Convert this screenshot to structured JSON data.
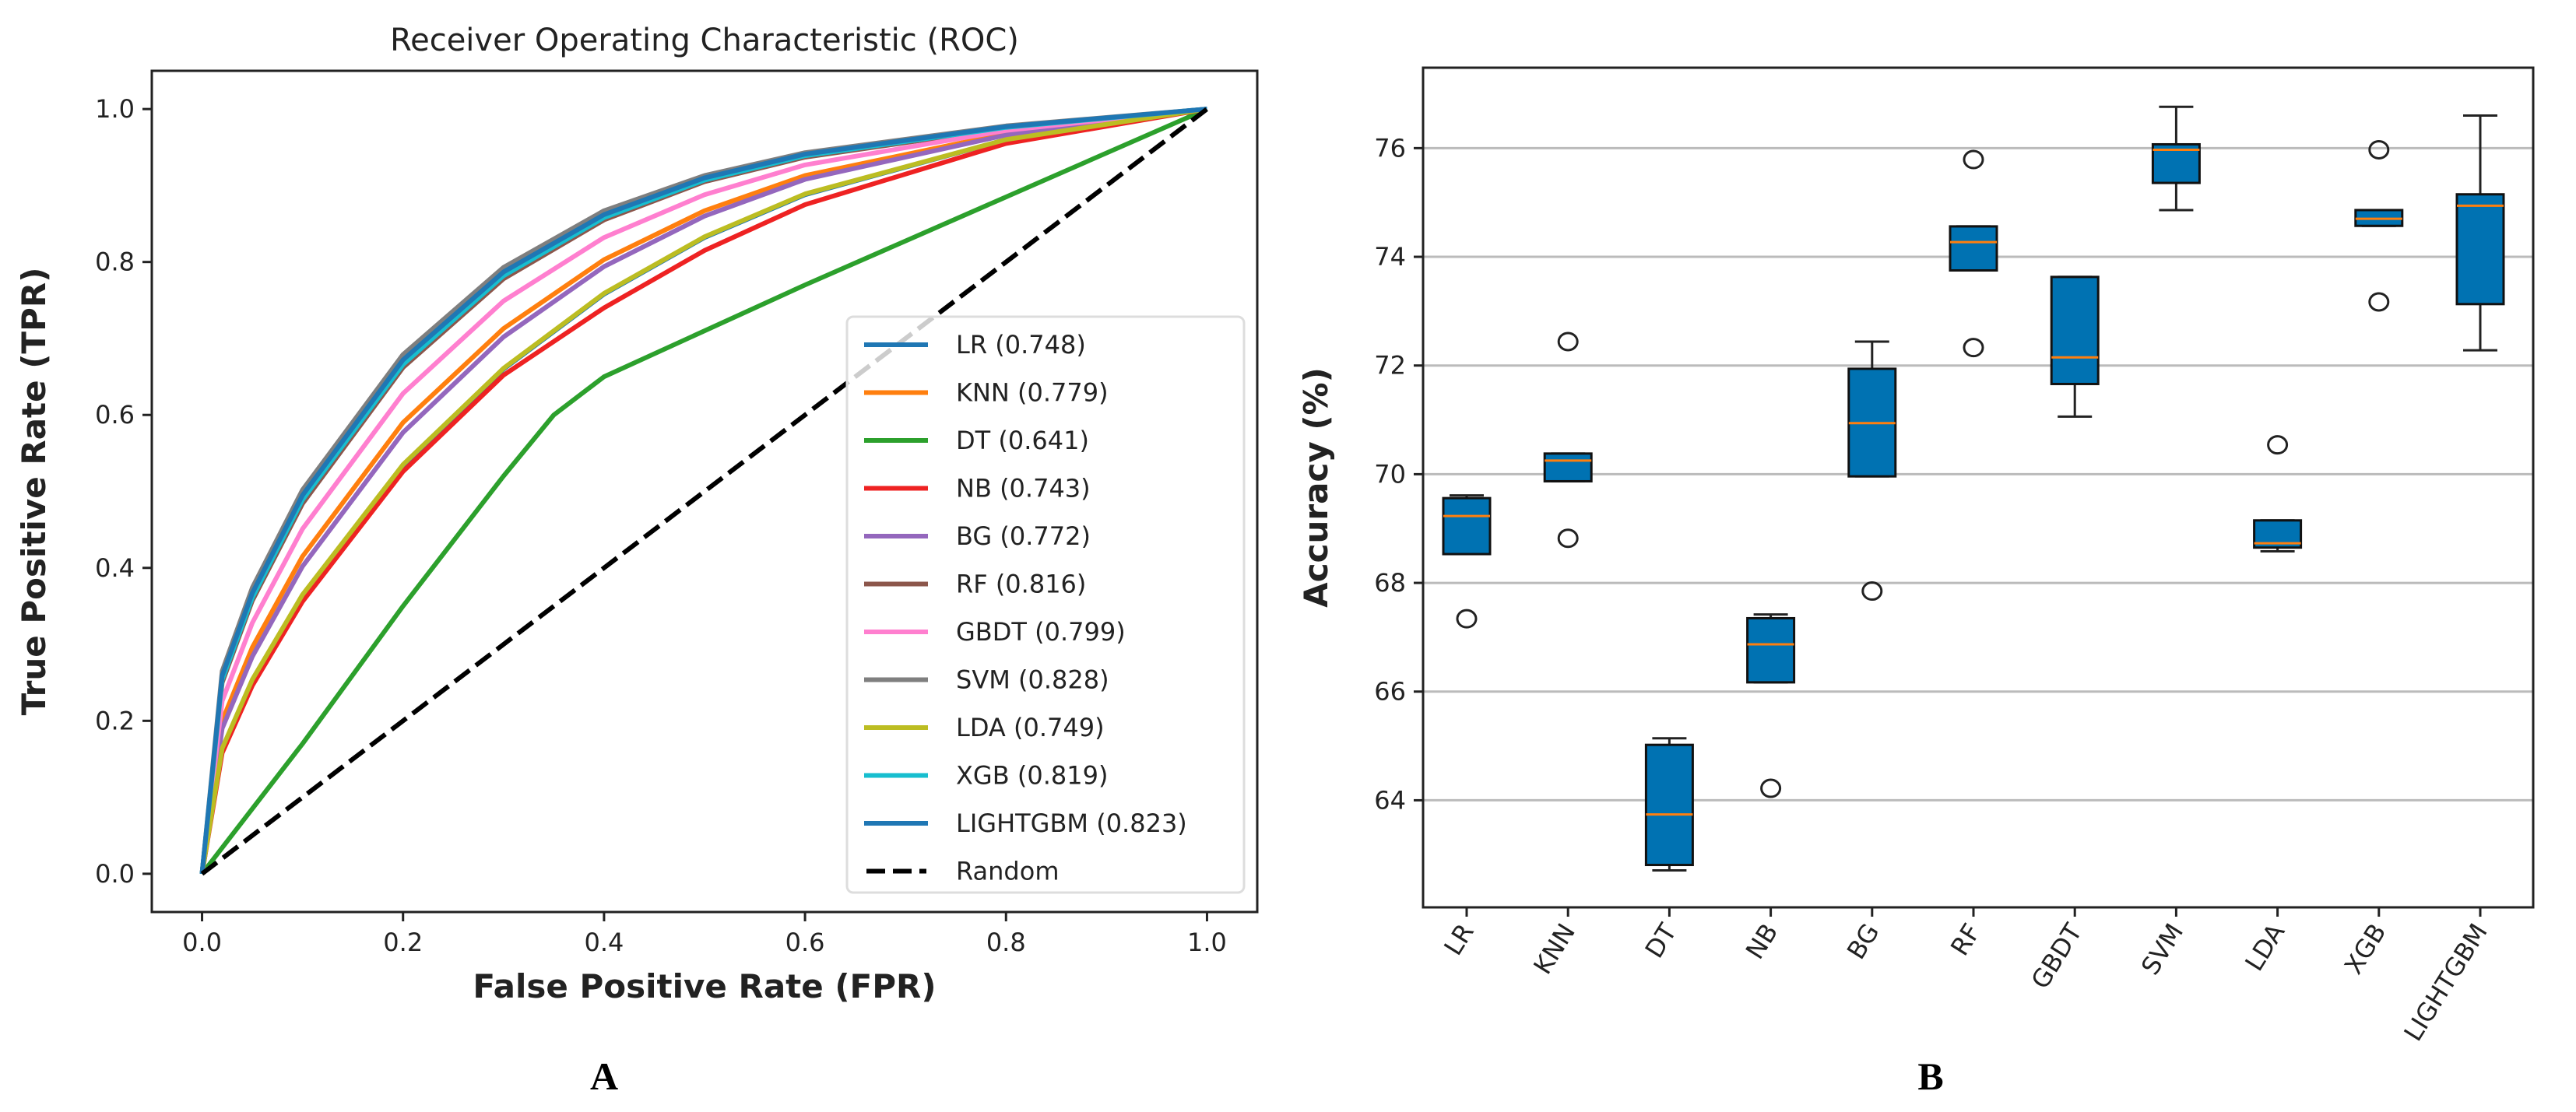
{
  "panel_labels": {
    "a": "A",
    "b": "B"
  },
  "chart_data": [
    {
      "type": "line",
      "title": "Receiver Operating Characteristic (ROC)",
      "xlabel": "False Positive Rate (FPR)",
      "ylabel": "True Positive Rate (TPR)",
      "xlim": [
        -0.05,
        1.05
      ],
      "ylim": [
        -0.05,
        1.05
      ],
      "xticks": [
        "0.0",
        "0.2",
        "0.4",
        "0.6",
        "0.8",
        "1.0"
      ],
      "yticks": [
        "0.0",
        "0.2",
        "0.4",
        "0.6",
        "0.8",
        "1.0"
      ],
      "grid": false,
      "legend_position": "lower-right",
      "fpr": [
        0,
        0.02,
        0.05,
        0.1,
        0.2,
        0.3,
        0.4,
        0.5,
        0.6,
        0.8,
        1
      ],
      "series": [
        {
          "name": "LR (0.748)",
          "auc": 0.748,
          "color": "#1f77b4",
          "tpr": [
            0,
            0.163,
            0.253,
            0.364,
            0.534,
            0.66,
            0.758,
            0.832,
            0.888,
            0.96,
            1
          ]
        },
        {
          "name": "KNN (0.779)",
          "auc": 0.779,
          "color": "#ff7f0e",
          "tpr": [
            0,
            0.2,
            0.296,
            0.415,
            0.59,
            0.713,
            0.803,
            0.867,
            0.913,
            0.968,
            1
          ]
        },
        {
          "name": "DT (0.641)",
          "auc": 0.641,
          "color": "#2ca02c",
          "fpr": [
            0,
            0.1,
            0.2,
            0.3,
            0.35,
            0.4,
            0.6,
            0.8,
            1
          ],
          "tpr": [
            0,
            0.17,
            0.35,
            0.52,
            0.6,
            0.65,
            0.77,
            0.885,
            1
          ]
        },
        {
          "name": "NB (0.743)",
          "auc": 0.743,
          "color": "#ee2222",
          "tpr": [
            0,
            0.158,
            0.246,
            0.356,
            0.526,
            0.652,
            0.74,
            0.815,
            0.875,
            0.955,
            1
          ]
        },
        {
          "name": "BG (0.772)",
          "auc": 0.772,
          "color": "#9467bd",
          "tpr": [
            0,
            0.19,
            0.284,
            0.402,
            0.577,
            0.702,
            0.794,
            0.86,
            0.908,
            0.966,
            1
          ]
        },
        {
          "name": "RF (0.816)",
          "auc": 0.816,
          "color": "#8c564b",
          "tpr": [
            0,
            0.25,
            0.357,
            0.484,
            0.662,
            0.778,
            0.855,
            0.905,
            0.937,
            0.975,
            1
          ]
        },
        {
          "name": "GBDT (0.799)",
          "auc": 0.799,
          "color": "#ff7fcf",
          "tpr": [
            0,
            0.226,
            0.328,
            0.451,
            0.628,
            0.749,
            0.832,
            0.888,
            0.927,
            0.972,
            1
          ]
        },
        {
          "name": "SVM (0.828)",
          "auc": 0.828,
          "color": "#7f7f7f",
          "tpr": [
            0,
            0.265,
            0.374,
            0.502,
            0.679,
            0.793,
            0.867,
            0.913,
            0.943,
            0.978,
            1
          ]
        },
        {
          "name": "LDA (0.749)",
          "auc": 0.749,
          "color": "#bcbd22",
          "tpr": [
            0,
            0.164,
            0.254,
            0.365,
            0.535,
            0.661,
            0.759,
            0.833,
            0.889,
            0.96,
            1
          ]
        },
        {
          "name": "XGB (0.819)",
          "auc": 0.819,
          "color": "#17becf",
          "tpr": [
            0,
            0.254,
            0.361,
            0.489,
            0.666,
            0.782,
            0.858,
            0.907,
            0.939,
            0.976,
            1
          ]
        },
        {
          "name": "LIGHTGBM (0.823)",
          "auc": 0.823,
          "color": "#1f77b4",
          "tpr": [
            0,
            0.259,
            0.367,
            0.495,
            0.672,
            0.787,
            0.862,
            0.91,
            0.941,
            0.977,
            1
          ]
        },
        {
          "name": "Random",
          "color": "#000000",
          "dashed": true,
          "fpr": [
            0,
            1
          ],
          "tpr": [
            0,
            1
          ]
        }
      ]
    },
    {
      "type": "box",
      "title": "",
      "xlabel": "",
      "ylabel": "Accuracy (%)",
      "ylim": [
        62.03,
        77.48
      ],
      "yticks": [
        64,
        66,
        68,
        70,
        72,
        74,
        76
      ],
      "grid": "y",
      "box_color": "#0072b2",
      "median_color": "#ff7f0e",
      "categories": [
        "LR",
        "KNN",
        "DT",
        "NB",
        "BG",
        "RF",
        "GBDT",
        "SVM",
        "LDA",
        "XGB",
        "LIGHTGBM"
      ],
      "boxes": [
        {
          "whislo": 68.53,
          "q1": 68.53,
          "med": 69.23,
          "q3": 69.56,
          "whishi": 69.61,
          "fliers": [
            67.34
          ]
        },
        {
          "whislo": 69.87,
          "q1": 69.87,
          "med": 70.25,
          "q3": 70.38,
          "whishi": 70.38,
          "fliers": [
            72.44,
            68.82
          ]
        },
        {
          "whislo": 62.71,
          "q1": 62.81,
          "med": 63.74,
          "q3": 65.02,
          "whishi": 65.14,
          "fliers": []
        },
        {
          "whislo": 66.17,
          "q1": 66.17,
          "med": 66.87,
          "q3": 67.35,
          "whishi": 67.42,
          "fliers": [
            64.22
          ]
        },
        {
          "whislo": 69.96,
          "q1": 69.96,
          "med": 70.94,
          "q3": 71.94,
          "whishi": 72.44,
          "fliers": [
            67.85
          ]
        },
        {
          "whislo": 73.75,
          "q1": 73.75,
          "med": 74.27,
          "q3": 74.56,
          "whishi": 74.56,
          "fliers": [
            75.79,
            72.33
          ]
        },
        {
          "whislo": 71.06,
          "q1": 71.66,
          "med": 72.15,
          "q3": 73.63,
          "whishi": 73.63,
          "fliers": []
        },
        {
          "whislo": 74.86,
          "q1": 75.36,
          "med": 75.97,
          "q3": 76.07,
          "whishi": 76.76,
          "fliers": []
        },
        {
          "whislo": 68.58,
          "q1": 68.65,
          "med": 68.73,
          "q3": 69.15,
          "whishi": 69.15,
          "fliers": [
            70.54
          ]
        },
        {
          "whislo": 74.57,
          "q1": 74.57,
          "med": 74.7,
          "q3": 74.86,
          "whishi": 74.86,
          "fliers": [
            75.97,
            73.17
          ]
        },
        {
          "whislo": 72.28,
          "q1": 73.13,
          "med": 74.94,
          "q3": 75.15,
          "whishi": 76.6,
          "fliers": []
        }
      ]
    }
  ]
}
